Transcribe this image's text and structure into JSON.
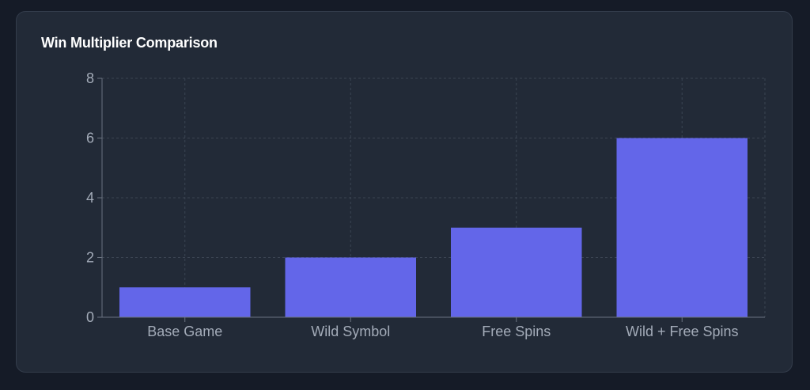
{
  "card": {
    "title": "Win Multiplier Comparison"
  },
  "colors": {
    "page_background": "#151b27",
    "card_background": "#222a37",
    "bar": "#6366e9",
    "grid": "#3b4452",
    "axis": "#6b7380",
    "tick_text": "#a3abb8"
  },
  "chart_data": {
    "type": "bar",
    "title": "Win Multiplier Comparison",
    "categories": [
      "Base Game",
      "Wild Symbol",
      "Free Spins",
      "Wild + Free Spins"
    ],
    "values": [
      1,
      2,
      3,
      6
    ],
    "xlabel": "",
    "ylabel": "",
    "ylim": [
      0,
      8
    ],
    "yticks": [
      0,
      2,
      4,
      6,
      8
    ],
    "grid": true,
    "legend": "none"
  }
}
